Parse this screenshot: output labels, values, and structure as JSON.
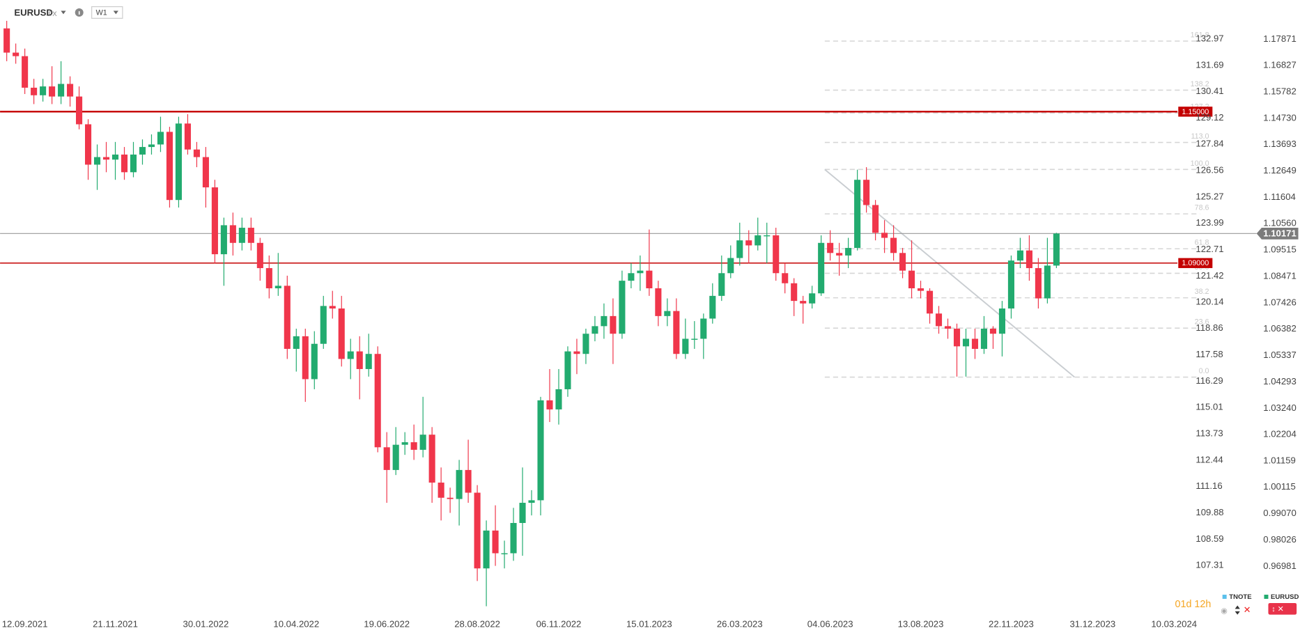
{
  "chart_data": {
    "type": "candlestick",
    "title": "EURUSD",
    "subtitle": "FX",
    "timeframe": "W1",
    "categories": [
      null,
      null,
      "12.09.2021",
      null,
      null,
      null,
      null,
      null,
      null,
      null,
      null,
      null,
      "21.11.2021",
      null,
      null,
      null,
      null,
      null,
      null,
      null,
      null,
      null,
      "30.01.2022",
      null,
      null,
      null,
      null,
      null,
      null,
      null,
      null,
      null,
      "10.04.2022",
      null,
      null,
      null,
      null,
      null,
      null,
      null,
      null,
      null,
      "19.06.2022",
      null,
      null,
      null,
      null,
      null,
      null,
      null,
      null,
      null,
      "28.08.2022",
      null,
      null,
      null,
      null,
      null,
      null,
      null,
      null,
      "06.11.2022",
      null,
      null,
      null,
      null,
      null,
      null,
      null,
      null,
      null,
      "15.01.2023",
      null,
      null,
      null,
      null,
      null,
      null,
      null,
      null,
      null,
      "26.03.2023",
      null,
      null,
      null,
      null,
      null,
      null,
      null,
      null,
      null,
      "04.06.2023",
      null,
      null,
      null,
      null,
      null,
      null,
      null,
      null,
      null,
      "13.08.2023",
      null,
      null,
      null,
      null,
      null,
      null,
      null,
      null,
      null,
      "22.11.2023",
      null,
      null,
      null,
      null,
      null,
      null,
      null,
      null,
      "31.12.2023",
      null,
      null,
      null,
      null,
      null,
      null,
      null,
      null,
      "10.03.2024"
    ],
    "open": [
      1.183,
      1.1734,
      1.172,
      1.1595,
      1.1565,
      1.16,
      1.156,
      1.161,
      1.156,
      1.145,
      1.129,
      1.132,
      1.131,
      1.133,
      1.126,
      1.133,
      1.136,
      1.137,
      1.142,
      1.115,
      1.1453,
      1.135,
      1.132,
      1.12,
      1.0935,
      1.105,
      1.098,
      1.104,
      1.098,
      1.088,
      1.08,
      1.081,
      1.056,
      1.061,
      1.044,
      1.058,
      1.073,
      1.072,
      1.052,
      1.055,
      1.048,
      1.054,
      1.017,
      1.008,
      1.018,
      1.019,
      1.016,
      1.022,
      1.003,
      0.997,
      0.9965,
      1.008,
      0.999,
      0.969,
      0.984,
      0.975,
      0.975,
      0.987,
      0.995,
      0.996,
      1.0356,
      1.032,
      1.04,
      1.055,
      1.054,
      1.062,
      1.065,
      1.069,
      1.062,
      1.083,
      1.086,
      1.087,
      1.08,
      1.069,
      1.071,
      1.054,
      1.06,
      1.06,
      1.068,
      1.077,
      1.086,
      1.092,
      1.099,
      1.097,
      1.101,
      1.101,
      1.086,
      1.082,
      1.075,
      1.074,
      1.078,
      1.098,
      1.094,
      1.093,
      1.096,
      1.123,
      1.113,
      1.102,
      1.1,
      1.094,
      1.087,
      1.08,
      1.079,
      1.07,
      1.065,
      1.064,
      1.057,
      1.06,
      1.056,
      1.064,
      1.062,
      1.072,
      1.091,
      1.095,
      1.088,
      1.076,
      1.089,
      null,
      null,
      null,
      null,
      null,
      null,
      null,
      null,
      null,
      null,
      null,
      null,
      null
    ],
    "high": [
      1.186,
      1.177,
      1.175,
      1.163,
      1.163,
      1.168,
      1.17,
      1.164,
      1.16,
      1.147,
      1.137,
      1.138,
      1.138,
      1.136,
      1.138,
      1.139,
      1.141,
      1.148,
      1.144,
      1.148,
      1.149,
      1.138,
      1.136,
      1.123,
      1.108,
      1.11,
      1.108,
      1.108,
      1.1,
      1.093,
      1.094,
      1.085,
      1.064,
      1.064,
      1.063,
      1.077,
      1.079,
      1.077,
      1.06,
      1.061,
      1.062,
      1.057,
      1.023,
      1.025,
      1.023,
      1.026,
      1.037,
      1.025,
      1.009,
      1.001,
      1.012,
      1.02,
      1.002,
      0.988,
      0.994,
      0.98,
      0.993,
      1.009,
      1.0,
      1.037,
      1.048,
      1.048,
      1.057,
      1.06,
      1.064,
      1.069,
      1.074,
      1.076,
      1.087,
      1.09,
      1.093,
      1.1033,
      1.083,
      1.076,
      1.076,
      1.068,
      1.067,
      1.07,
      1.082,
      1.093,
      1.097,
      1.106,
      1.103,
      1.108,
      1.106,
      1.104,
      1.09,
      1.084,
      1.077,
      1.081,
      1.101,
      1.103,
      1.098,
      1.1,
      1.127,
      1.128,
      1.115,
      1.107,
      1.105,
      1.096,
      1.099,
      1.083,
      1.08,
      1.073,
      1.068,
      1.066,
      1.064,
      1.064,
      1.069,
      1.065,
      1.075,
      1.093,
      1.1,
      1.101,
      1.092,
      1.1,
      1.102,
      null,
      null,
      null,
      null,
      null,
      null,
      null,
      null,
      null,
      null,
      null,
      null,
      null
    ],
    "low": [
      1.17,
      1.169,
      1.157,
      1.153,
      1.154,
      1.153,
      1.153,
      1.152,
      1.143,
      1.123,
      1.119,
      1.126,
      1.123,
      1.123,
      1.124,
      1.129,
      1.133,
      1.134,
      1.112,
      1.112,
      1.133,
      1.128,
      1.112,
      1.09,
      1.081,
      1.093,
      1.095,
      1.095,
      1.083,
      1.076,
      1.077,
      1.052,
      1.047,
      1.035,
      1.04,
      1.056,
      1.068,
      1.049,
      1.044,
      1.036,
      1.045,
      1.015,
      0.995,
      1.006,
      1.014,
      1.012,
      1.013,
      0.995,
      0.988,
      0.991,
      0.986,
      0.995,
      0.964,
      0.954,
      0.97,
      0.969,
      0.972,
      0.974,
      0.99,
      0.99,
      1.027,
      1.026,
      1.037,
      1.046,
      1.05,
      1.059,
      1.06,
      1.05,
      1.06,
      1.08,
      1.079,
      1.077,
      1.065,
      1.065,
      1.052,
      1.052,
      1.056,
      1.052,
      1.066,
      1.075,
      1.084,
      1.089,
      1.09,
      1.095,
      1.09,
      1.083,
      1.078,
      1.069,
      1.066,
      1.072,
      1.077,
      1.091,
      1.085,
      1.088,
      1.095,
      1.11,
      1.099,
      1.094,
      1.091,
      1.084,
      1.076,
      1.076,
      1.066,
      1.062,
      1.06,
      1.045,
      1.045,
      1.052,
      1.054,
      1.056,
      1.053,
      1.068,
      1.088,
      1.083,
      1.072,
      1.074,
      1.088,
      null,
      null,
      null,
      null,
      null,
      null,
      null,
      null,
      null,
      null,
      null,
      null,
      null
    ],
    "close": [
      1.1734,
      1.172,
      1.1595,
      1.1565,
      1.16,
      1.156,
      1.161,
      1.156,
      1.145,
      1.129,
      1.132,
      1.131,
      1.133,
      1.126,
      1.133,
      1.136,
      1.137,
      1.142,
      1.115,
      1.1453,
      1.135,
      1.132,
      1.12,
      1.0935,
      1.105,
      1.098,
      1.104,
      1.098,
      1.088,
      1.08,
      1.081,
      1.056,
      1.061,
      1.044,
      1.058,
      1.073,
      1.072,
      1.052,
      1.055,
      1.048,
      1.054,
      1.017,
      1.008,
      1.018,
      1.019,
      1.016,
      1.022,
      1.003,
      0.997,
      0.9965,
      1.008,
      0.999,
      0.969,
      0.984,
      0.975,
      0.975,
      0.987,
      0.995,
      0.996,
      1.0356,
      1.032,
      1.04,
      1.055,
      1.054,
      1.062,
      1.065,
      1.069,
      1.062,
      1.083,
      1.086,
      1.087,
      1.08,
      1.069,
      1.071,
      1.054,
      1.06,
      1.06,
      1.068,
      1.077,
      1.086,
      1.092,
      1.099,
      1.097,
      1.101,
      1.101,
      1.086,
      1.082,
      1.075,
      1.074,
      1.078,
      1.098,
      1.094,
      1.093,
      1.096,
      1.123,
      1.113,
      1.102,
      1.1,
      1.094,
      1.087,
      1.08,
      1.079,
      1.07,
      1.065,
      1.064,
      1.057,
      1.06,
      1.056,
      1.064,
      1.062,
      1.072,
      1.091,
      1.095,
      1.088,
      1.076,
      1.089,
      1.10171,
      null,
      null,
      null,
      null,
      null,
      null,
      null,
      null,
      null,
      null,
      null,
      null,
      null
    ],
    "up_color": "#22ab6f",
    "down_color": "#f0364b",
    "ylim": [
      0.95,
      1.186
    ],
    "yticks": [
      1.17871,
      1.16827,
      1.15782,
      {
        "value": 1.1473,
        "label": "1.14730"
      },
      1.13693,
      1.12649,
      1.11604,
      {
        "value": 1.1056,
        "label": "1.10560"
      },
      1.09515,
      1.08471,
      1.07426,
      1.06382,
      1.05337,
      1.04293,
      {
        "value": 1.0324,
        "label": "1.03240"
      },
      1.02204,
      1.01159,
      1.00115,
      {
        "value": 0.9907,
        "label": "0.99070"
      },
      0.98026,
      0.96981
    ],
    "y2lim": [
      104.83,
      133.86
    ],
    "y2ticks": [
      132.97,
      131.69,
      130.41,
      129.12,
      127.84,
      126.56,
      125.27,
      123.99,
      122.71,
      121.42,
      120.14,
      118.86,
      117.58,
      116.29,
      115.01,
      113.73,
      112.44,
      111.16,
      109.88,
      108.59,
      107.31
    ],
    "fib": {
      "low": 1.0448,
      "high": 1.1271,
      "start": 90.4,
      "levels": [
        161.8,
        138.2,
        127.2,
        {
          "value": 113,
          "label": "113.0"
        },
        {
          "value": 100,
          "label": "100.0"
        },
        78.6,
        61.8,
        {
          "value": 50,
          "label": "50.0"
        },
        38.2,
        23.6,
        {
          "value": 0,
          "label": "0.0"
        }
      ]
    },
    "lines": [
      {
        "value": 1.15,
        "label": "1.15000"
      },
      {
        "value": 1.09,
        "label": "1.09000"
      }
    ],
    "line_color": "#c40000",
    "last_price": 1.10171,
    "trendline": {
      "x": [
        90.4,
        118
      ],
      "y": [
        1.1271,
        1.0448
      ]
    },
    "timer": "01d 12h",
    "legend": [
      {
        "name": "TNOTE",
        "color": "#5bc0eb"
      },
      {
        "name": "EURUSD",
        "color": "#22ab6f"
      }
    ]
  }
}
